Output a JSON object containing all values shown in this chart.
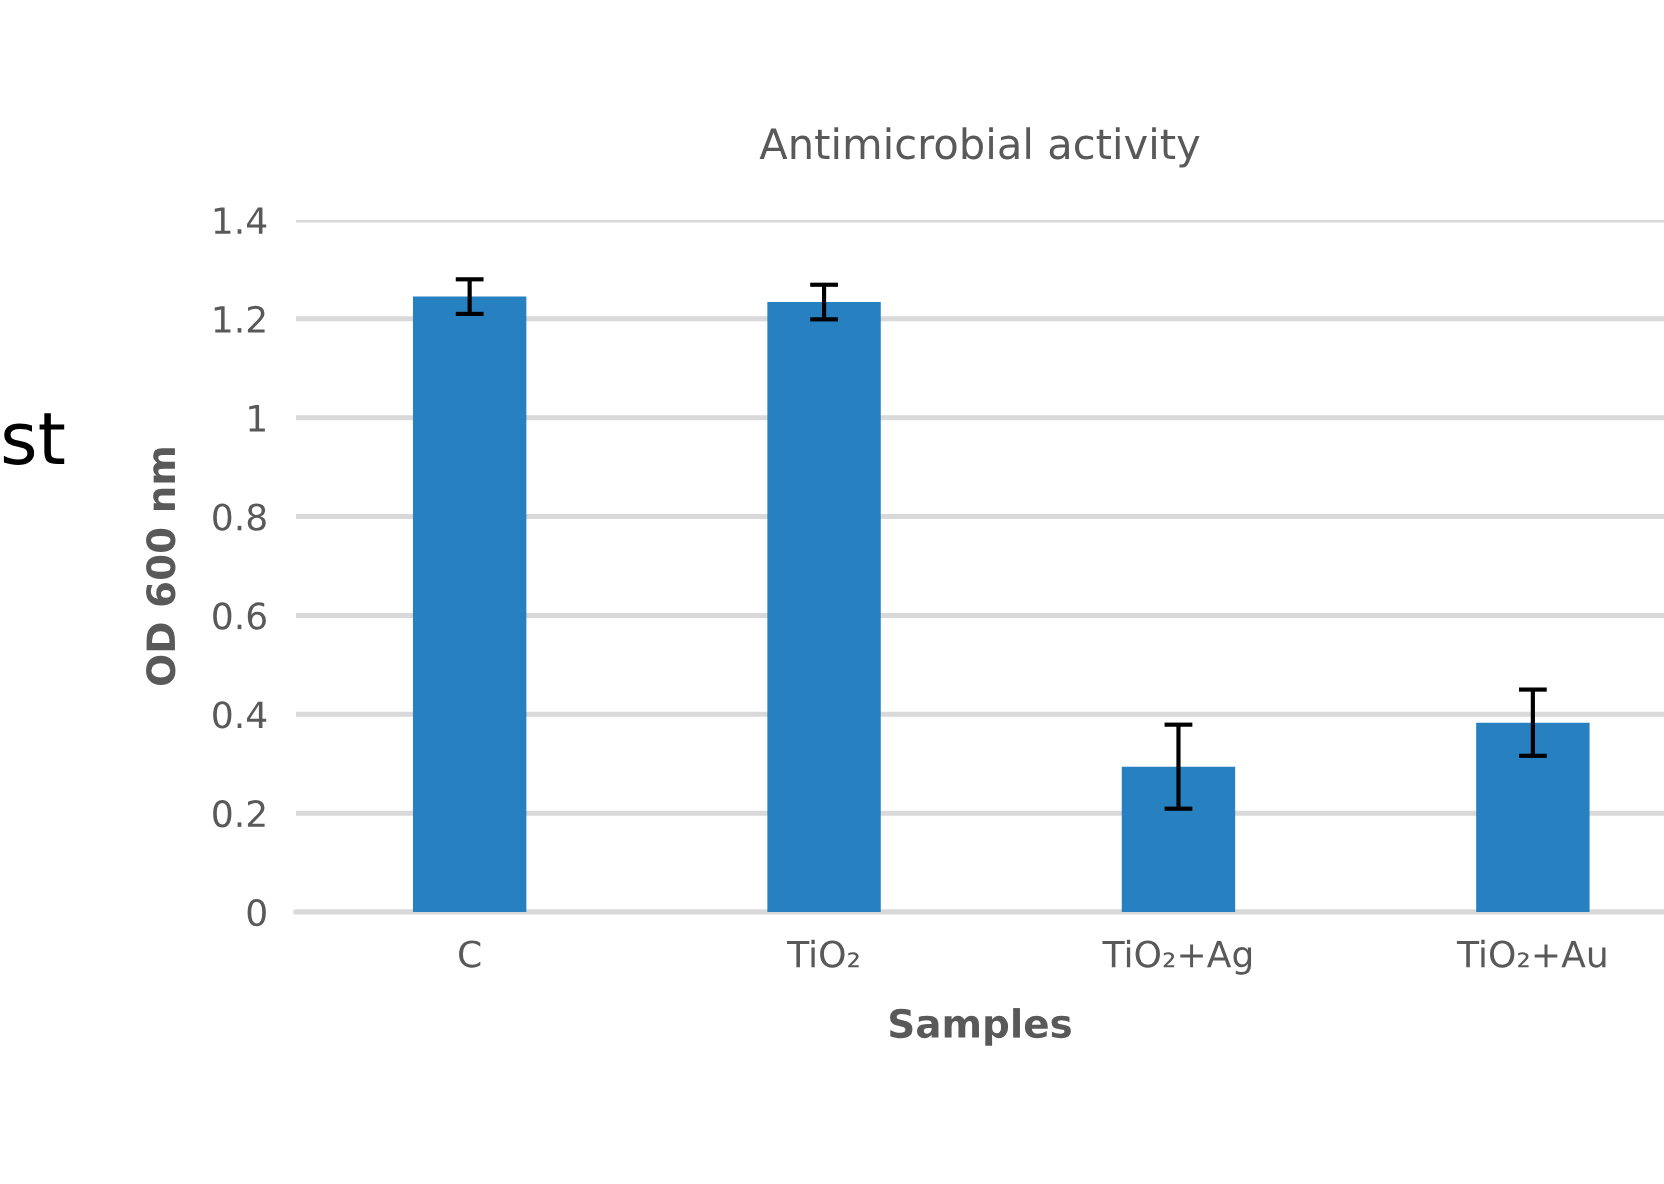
{
  "chart_data": {
    "type": "bar",
    "title": "Antimicrobial activity",
    "xlabel": "Samples",
    "ylabel": "OD 600 nm",
    "categories": [
      "C",
      "TiO₂",
      "TiO₂+Ag",
      "TiO₂+Au"
    ],
    "values": [
      1.245,
      1.234,
      0.294,
      0.383
    ],
    "errors": [
      0.035,
      0.035,
      0.085,
      0.067
    ],
    "color": "#2780c0",
    "ylim": [
      0,
      1.4
    ],
    "yticks": [
      0,
      0.2,
      0.4,
      0.6,
      0.8,
      1,
      1.2,
      1.4
    ],
    "grid": "y",
    "legend": false,
    "annotations": [
      "st"
    ]
  }
}
